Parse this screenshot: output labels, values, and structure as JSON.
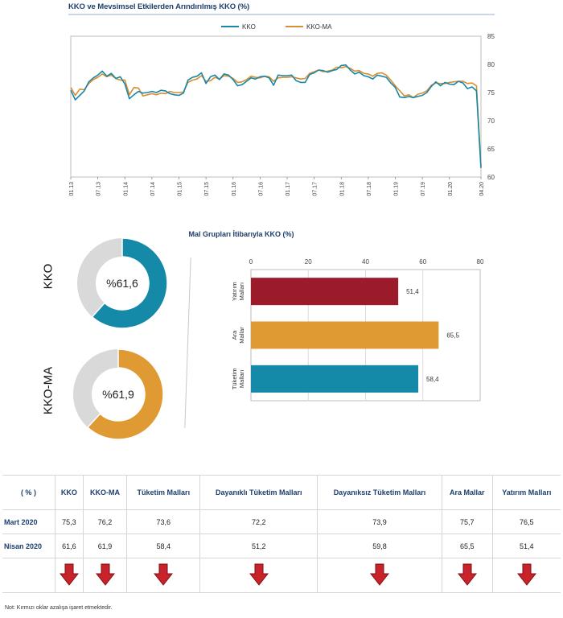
{
  "line_chart": {
    "title": "KKO ve Mevsimsel Etkilerden Arındırılmış KKO (%)",
    "legend": [
      "KKO",
      "KKO-MA"
    ],
    "colors": {
      "KKO": "#1a87a8",
      "KKO-MA": "#d88f32"
    }
  },
  "donuts": [
    {
      "label": "KKO",
      "text": "%61,6",
      "value": 61.6,
      "color": "#1589a8"
    },
    {
      "label": "KKO-MA",
      "text": "%61,9",
      "value": 61.9,
      "color": "#e09a34"
    }
  ],
  "bar_chart": {
    "title": "Mal Grupları İtibarıyla KKO (%)"
  },
  "chart_data": [
    {
      "type": "line",
      "title": "KKO ve Mevsimsel Etkilerden Arındırılmış KKO (%)",
      "ylim": [
        60,
        85
      ],
      "yticks": [
        60,
        65,
        70,
        75,
        80,
        85
      ],
      "y_axis_side": "right",
      "xtick_labels": [
        "01.13",
        "07.13",
        "01.14",
        "07.14",
        "01.15",
        "07.15",
        "01.16",
        "07.16",
        "01.17",
        "07.17",
        "01.18",
        "07.18",
        "01.19",
        "07.19",
        "01.20",
        "04.20"
      ],
      "legend_position": "top",
      "series": [
        {
          "name": "KKO",
          "color": "#1a87a8",
          "values": [
            75.4,
            73.7,
            74.5,
            75.3,
            76.9,
            77.6,
            78.1,
            78.8,
            77.9,
            78.4,
            77.5,
            77.8,
            76.5,
            73.9,
            74.6,
            75.2,
            74.9,
            75.0,
            75.2,
            75.0,
            75.4,
            75.3,
            74.8,
            74.6,
            74.5,
            74.9,
            77.2,
            77.7,
            77.9,
            78.5,
            76.6,
            77.8,
            78.1,
            77.3,
            78.3,
            78.1,
            77.3,
            76.2,
            76.4,
            77.0,
            77.6,
            77.4,
            77.8,
            77.9,
            77.6,
            76.3,
            78.1,
            78.0,
            78.0,
            78.1,
            77.1,
            76.8,
            76.8,
            78.2,
            78.5,
            79.0,
            78.9,
            78.6,
            78.9,
            79.1,
            79.8,
            79.9,
            79.0,
            78.3,
            78.6,
            78.0,
            77.8,
            77.4,
            78.1,
            77.9,
            77.7,
            76.7,
            75.9,
            74.2,
            74.1,
            74.3,
            74.1,
            74.3,
            74.5,
            75.0,
            76.1,
            76.9,
            76.2,
            76.8,
            76.5,
            76.4,
            77.0,
            76.7,
            75.7,
            76.0,
            75.3,
            61.6
          ]
        },
        {
          "name": "KKO-MA",
          "color": "#d88f32",
          "values": [
            75.9,
            74.5,
            75.6,
            75.5,
            76.6,
            77.3,
            77.7,
            78.3,
            77.8,
            78.1,
            77.5,
            77.2,
            77.2,
            74.6,
            75.9,
            75.8,
            74.4,
            74.6,
            74.8,
            74.6,
            74.9,
            74.8,
            75.2,
            75.0,
            75.0,
            75.1,
            76.8,
            77.2,
            77.4,
            78.0,
            77.0,
            77.1,
            77.7,
            77.4,
            78.0,
            77.9,
            77.5,
            76.8,
            76.9,
            77.3,
            77.9,
            77.7,
            77.6,
            77.9,
            77.8,
            77.0,
            77.6,
            77.7,
            77.7,
            77.8,
            77.6,
            77.4,
            77.5,
            78.4,
            78.7,
            79.0,
            78.7,
            78.8,
            79.0,
            79.5,
            79.4,
            79.6,
            79.3,
            78.8,
            78.9,
            78.4,
            78.3,
            77.9,
            78.4,
            78.5,
            78.1,
            77.2,
            76.2,
            75.3,
            74.4,
            74.6,
            74.1,
            74.7,
            74.9,
            75.3,
            76.3,
            76.7,
            76.6,
            76.6,
            76.8,
            76.9,
            77.0,
            77.0,
            76.6,
            76.7,
            76.2,
            61.9
          ]
        }
      ]
    },
    {
      "type": "bar",
      "orientation": "horizontal",
      "title": "Mal Grupları İtibarıyla KKO (%)",
      "categories": [
        "Yatırım Malları",
        "Ara Mallar",
        "Tüketim Malları"
      ],
      "values": [
        51.4,
        65.5,
        58.4
      ],
      "value_labels": [
        "51,4",
        "65,5",
        "58,4"
      ],
      "colors": [
        "#9b1b2b",
        "#e09a34",
        "#1589a8"
      ],
      "xlim": [
        0,
        80
      ],
      "xticks": [
        0,
        20,
        40,
        60,
        80
      ],
      "axis_position": "top"
    },
    {
      "type": "table",
      "columns": [
        "( % )",
        "KKO",
        "KKO-MA",
        "Tüketim Malları",
        "Dayanıklı Tüketim Malları",
        "Dayanıksız Tüketim Malları",
        "Ara Mallar",
        "Yatırım Malları"
      ],
      "rows": [
        {
          "label": "Mart 2020",
          "cells": [
            "75,3",
            "76,2",
            "73,6",
            "72,2",
            "73,9",
            "75,7",
            "76,5"
          ]
        },
        {
          "label": "Nisan 2020",
          "cells": [
            "61,6",
            "61,9",
            "58,4",
            "51,2",
            "59,8",
            "65,5",
            "51,4"
          ]
        }
      ],
      "trend": [
        "down",
        "down",
        "down",
        "down",
        "down",
        "down",
        "down"
      ]
    }
  ],
  "table_note": "Not: Kırmızı oklar azalışa işaret etmektedir."
}
